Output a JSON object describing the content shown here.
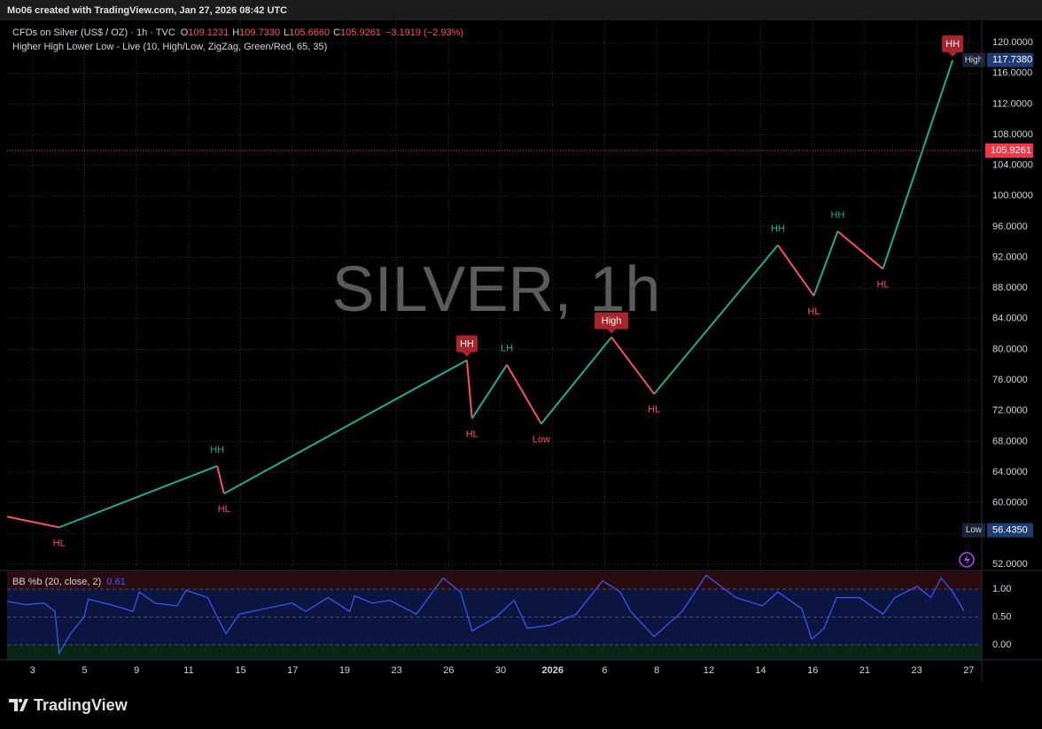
{
  "header": {
    "credit": "Mo06 created with TradingView.com, Jan 27, 2026 08:42 UTC"
  },
  "legend": {
    "symbol": "CFDs on Silver (US$ / OZ) · 1h · TVC",
    "open_label": "O",
    "open": "109.1231",
    "high_label": "H",
    "high": "109.7330",
    "low_label": "L",
    "low": "105.6660",
    "close_label": "C",
    "close": "105.9261",
    "change": "−3.1919 (−2.93%)"
  },
  "footer": {
    "brand": "TradingView"
  },
  "chart_data": [
    {
      "type": "line",
      "watermark": "SILVER, 1h",
      "xlim": [
        -0.49,
        18.25
      ],
      "xticks": [
        {
          "value": 0,
          "label": "3"
        },
        {
          "value": 1,
          "label": "5"
        },
        {
          "value": 2,
          "label": "9"
        },
        {
          "value": 3,
          "label": "11"
        },
        {
          "value": 4,
          "label": "15"
        },
        {
          "value": 5,
          "label": "17"
        },
        {
          "value": 6,
          "label": "19"
        },
        {
          "value": 7,
          "label": "23"
        },
        {
          "value": 8,
          "label": "26"
        },
        {
          "value": 9,
          "label": "30"
        },
        {
          "value": 10,
          "label": "2026"
        },
        {
          "value": 11,
          "label": "6"
        },
        {
          "value": 12,
          "label": "8"
        },
        {
          "value": 13,
          "label": "12"
        },
        {
          "value": 14,
          "label": "14"
        },
        {
          "value": 15,
          "label": "16"
        },
        {
          "value": 16,
          "label": "21"
        },
        {
          "value": 17,
          "label": "23"
        },
        {
          "value": 18,
          "label": "27"
        }
      ],
      "ylim": [
        51.3,
        122.9
      ],
      "yticks": [
        {
          "value": 52,
          "label": "52.0000"
        },
        {
          "value": 56,
          "label": "56.0000"
        },
        {
          "value": 60,
          "label": "60.0000"
        },
        {
          "value": 64,
          "label": "64.0000"
        },
        {
          "value": 68,
          "label": "68.0000"
        },
        {
          "value": 72,
          "label": "72.0000"
        },
        {
          "value": 76,
          "label": "76.0000"
        },
        {
          "value": 80,
          "label": "80.0000"
        },
        {
          "value": 84,
          "label": "84.0000"
        },
        {
          "value": 88,
          "label": "88.0000"
        },
        {
          "value": 92,
          "label": "92.0000"
        },
        {
          "value": 96,
          "label": "96.0000"
        },
        {
          "value": 100,
          "label": "100.0000"
        },
        {
          "value": 104,
          "label": "104.0000"
        },
        {
          "value": 108,
          "label": "108.0000"
        },
        {
          "value": 112,
          "label": "112.0000"
        },
        {
          "value": 116,
          "label": "116.0000"
        },
        {
          "value": 120,
          "label": "120.0000"
        }
      ],
      "grid": true,
      "series": [
        {
          "name": "Higher High Lower Low - Live (10, High/Low, ZigZag, Green/Red, 65, 35)",
          "x": [
            -0.49,
            0.51,
            3.55,
            3.68,
            8.35,
            8.45,
            9.12,
            9.78,
            11.13,
            11.95,
            14.33,
            15.02,
            15.48,
            16.35,
            17.69
          ],
          "values": [
            58.2,
            56.8,
            64.8,
            61.2,
            78.6,
            71.0,
            78.0,
            70.3,
            81.6,
            74.2,
            93.6,
            87.0,
            95.4,
            90.5,
            117.7
          ]
        }
      ],
      "up_color": "#22ab94",
      "down_color": "#f7525f",
      "pivot_labels": [
        null,
        "HL",
        "HH",
        "HL",
        "HH",
        "HL",
        "LH",
        "Low",
        "High",
        "HL",
        "HH",
        "HL",
        "HH",
        "HL",
        "HH"
      ],
      "label_boxed": [
        false,
        false,
        false,
        false,
        true,
        false,
        false,
        false,
        true,
        false,
        false,
        false,
        false,
        false,
        true
      ],
      "box_color": "#a8262b",
      "markers": {
        "names": [
          "High",
          "Low"
        ],
        "values": [
          117.738,
          56.435
        ],
        "value_labels": [
          "117.7380",
          "56.4350"
        ],
        "color": "#1f3b73"
      },
      "last_price": {
        "value": 105.9261,
        "label": "105.9261",
        "color": "#f23645"
      }
    },
    {
      "type": "line",
      "xlim": [
        -0.49,
        18.25
      ],
      "ylim": [
        -0.27,
        1.32
      ],
      "yticks": [
        {
          "value": 0,
          "label": "0.00"
        },
        {
          "value": 0.5,
          "label": "0.50"
        },
        {
          "value": 1,
          "label": "1.00"
        }
      ],
      "band": [
        0,
        1
      ],
      "band_color": "#0d1640",
      "upper_color": "#2a0c10",
      "lower_color": "#0b2418",
      "current_value": 0.61,
      "series": [
        {
          "name": "BB %b (20, close, 2)",
          "color": "#3d5afe",
          "x": [
            -0.49,
            -0.12,
            0.22,
            0.43,
            0.51,
            0.73,
            0.99,
            1.07,
            1.59,
            1.93,
            2.05,
            2.35,
            2.78,
            2.95,
            3.37,
            3.55,
            3.72,
            3.97,
            4.48,
            4.99,
            5.25,
            5.68,
            6.1,
            6.19,
            6.53,
            6.87,
            7.38,
            7.89,
            8.23,
            8.45,
            8.91,
            9.26,
            9.51,
            9.94,
            10.45,
            10.96,
            11.3,
            11.5,
            11.95,
            12.49,
            12.95,
            13.52,
            14.03,
            14.33,
            14.79,
            14.98,
            15.22,
            15.46,
            15.9,
            16.35,
            16.58,
            17.01,
            17.27,
            17.47,
            17.69,
            17.91
          ],
          "values": [
            0.78,
            0.72,
            0.75,
            0.6,
            -0.15,
            0.2,
            0.5,
            0.82,
            0.7,
            0.6,
            0.95,
            0.75,
            0.7,
            0.98,
            0.85,
            0.5,
            0.2,
            0.55,
            0.65,
            0.75,
            0.6,
            0.85,
            0.6,
            0.88,
            0.75,
            0.8,
            0.55,
            1.2,
            0.95,
            0.25,
            0.5,
            0.8,
            0.3,
            0.35,
            0.55,
            1.15,
            0.95,
            0.6,
            0.15,
            0.6,
            1.25,
            0.85,
            0.7,
            0.95,
            0.65,
            0.1,
            0.3,
            0.85,
            0.85,
            0.55,
            0.85,
            1.05,
            0.85,
            1.2,
            0.95,
            0.61
          ]
        }
      ]
    }
  ]
}
